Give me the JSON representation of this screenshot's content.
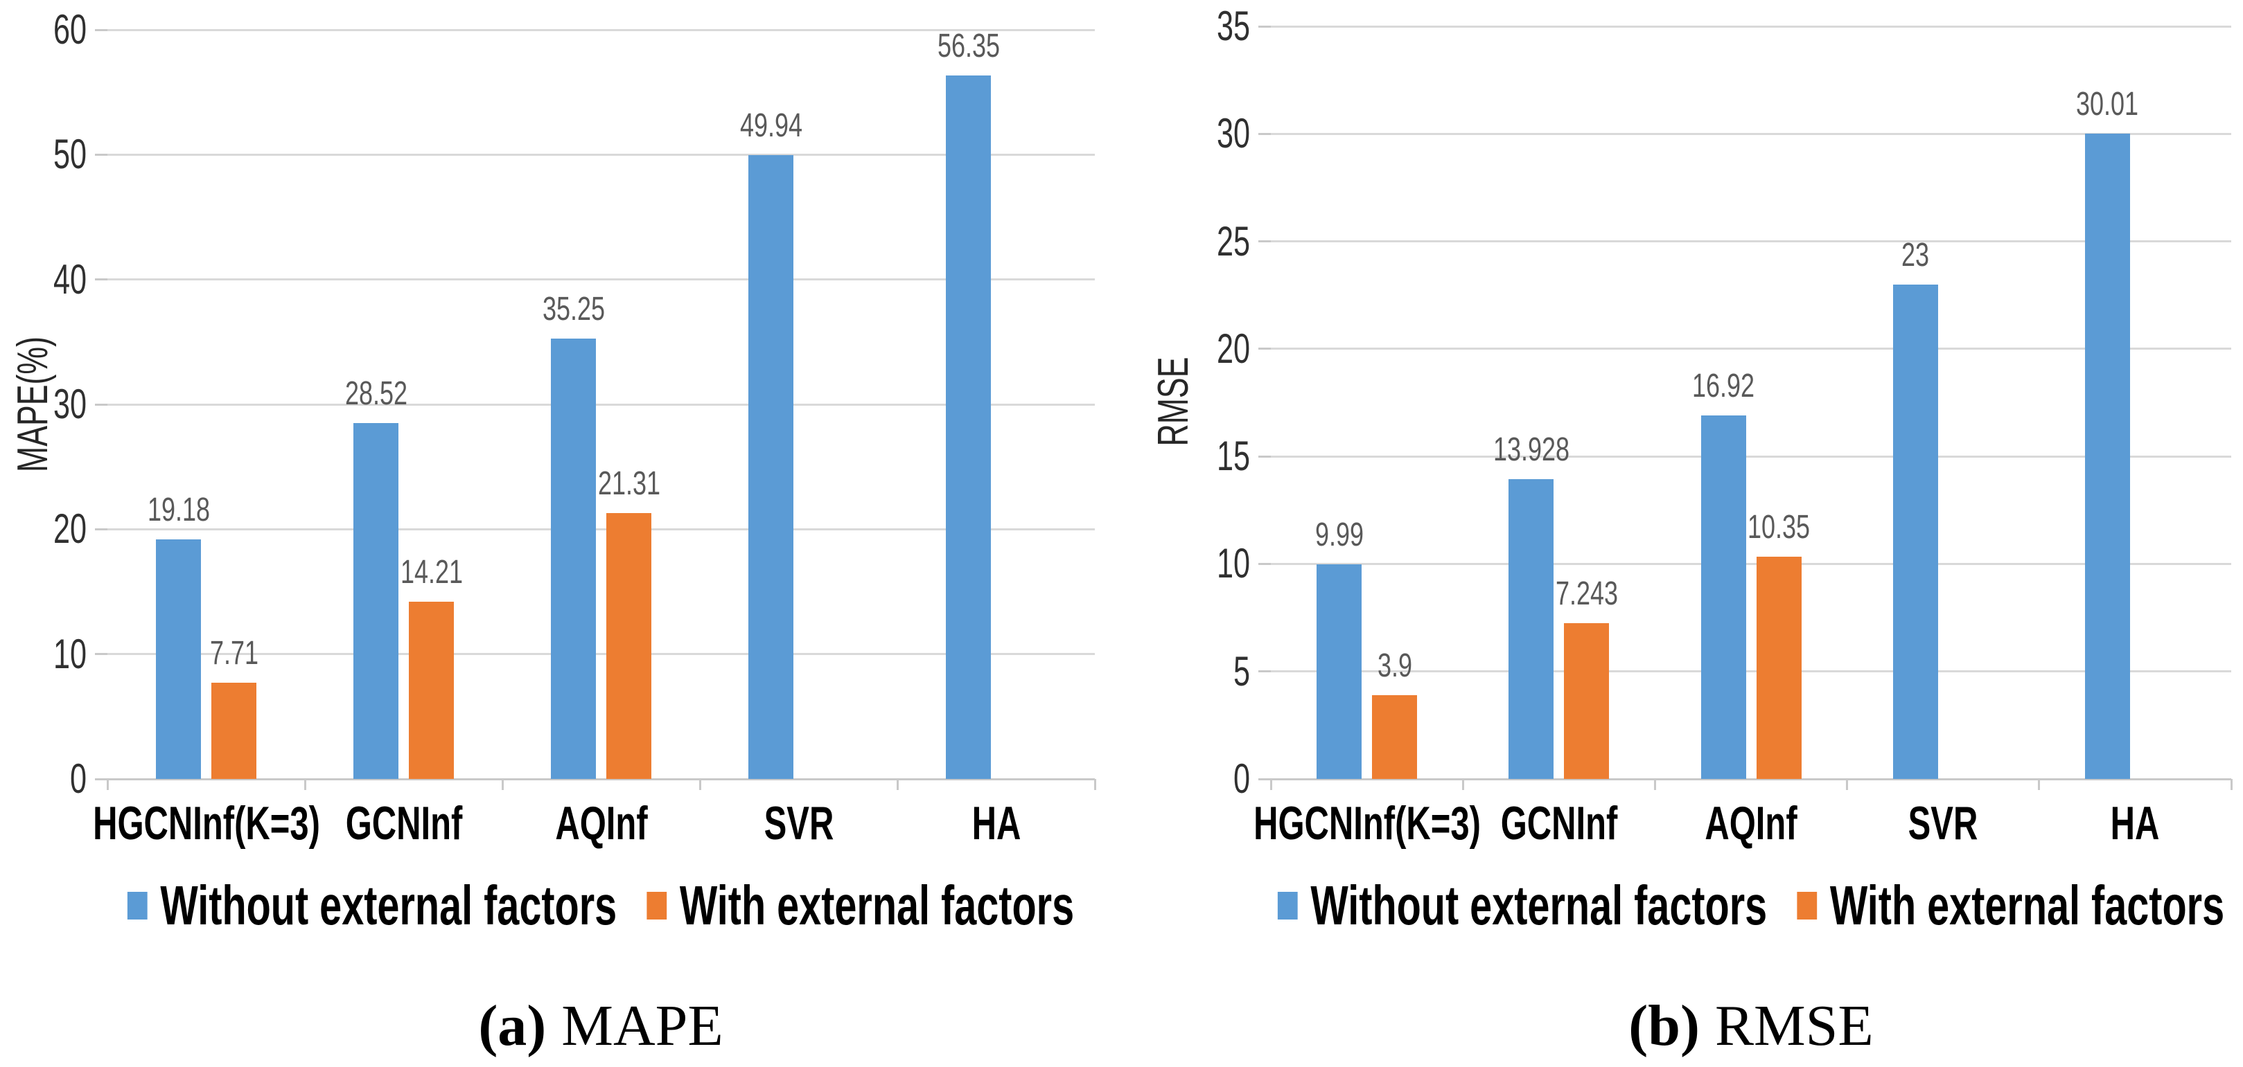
{
  "figure": {
    "background": "#ffffff",
    "colors": {
      "series_blue": "#5B9BD5",
      "series_orange": "#ED7D31",
      "gridline": "#D9D9D9",
      "axis_line": "#C9C9C9",
      "y_tick_text": "#303030",
      "x_label_text": "#000000",
      "data_label_text": "#595959"
    }
  },
  "chart_data": [
    {
      "type": "bar",
      "panel": "a",
      "caption": {
        "tag": "(a)",
        "label": "MAPE"
      },
      "ylabel": "MAPE(%)",
      "xlabel": "",
      "ylim": [
        0,
        60
      ],
      "ystep": 10,
      "yticks": [
        "0",
        "10",
        "20",
        "30",
        "40",
        "50",
        "60"
      ],
      "grid": true,
      "legend_position": "bottom",
      "categories": [
        "HGCNInf(K=3)",
        "GCNInf",
        "AQInf",
        "SVR",
        "HA"
      ],
      "series": [
        {
          "name": "Without external factors",
          "color": "#5B9BD5",
          "values": [
            19.18,
            28.52,
            35.25,
            49.94,
            56.35
          ],
          "labels": [
            "19.18",
            "28.52",
            "35.25",
            "49.94",
            "56.35"
          ]
        },
        {
          "name": "With external factors",
          "color": "#ED7D31",
          "values": [
            7.71,
            14.21,
            21.31,
            null,
            null
          ],
          "labels": [
            "7.71",
            "14.21",
            "21.31",
            null,
            null
          ]
        }
      ]
    },
    {
      "type": "bar",
      "panel": "b",
      "caption": {
        "tag": "(b)",
        "label": "RMSE"
      },
      "ylabel": "RMSE",
      "xlabel": "",
      "ylim": [
        0,
        35
      ],
      "ystep": 5,
      "yticks": [
        "0",
        "5",
        "10",
        "15",
        "20",
        "25",
        "30",
        "35"
      ],
      "grid": true,
      "legend_position": "bottom",
      "categories": [
        "HGCNInf(K=3)",
        "GCNInf",
        "AQInf",
        "SVR",
        "HA"
      ],
      "series": [
        {
          "name": "Without external factors",
          "color": "#5B9BD5",
          "values": [
            9.99,
            13.928,
            16.92,
            23,
            30.01
          ],
          "labels": [
            "9.99",
            "13.928",
            "16.92",
            "23",
            "30.01"
          ]
        },
        {
          "name": "With external factors",
          "color": "#ED7D31",
          "values": [
            3.9,
            7.243,
            10.35,
            null,
            null
          ],
          "labels": [
            "3.9",
            "7.243",
            "10.35",
            null,
            null
          ]
        }
      ]
    }
  ]
}
